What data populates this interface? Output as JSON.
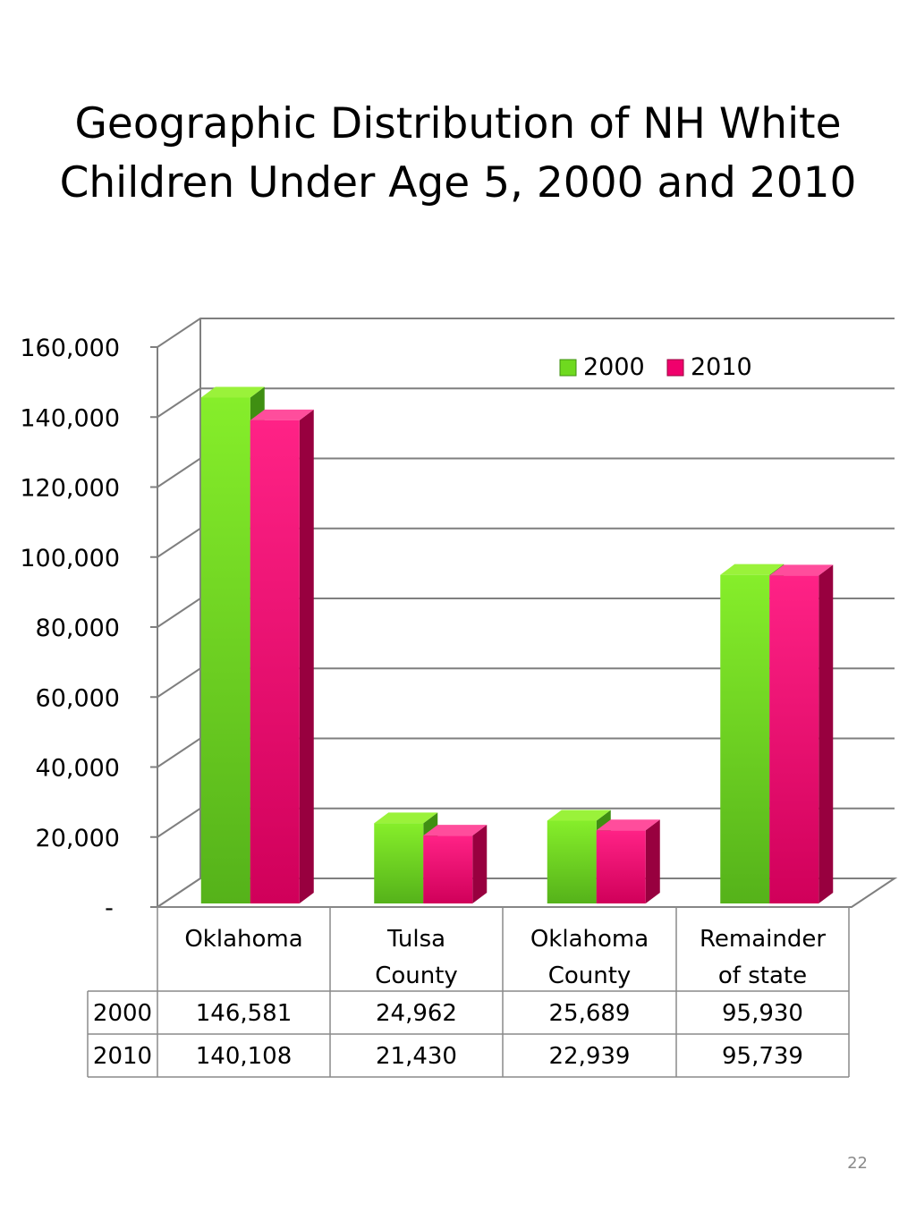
{
  "title": {
    "line1": "Geographic Distribution of NH White",
    "line2": "Children Under Age 5, 2000 and 2010"
  },
  "page_number": "22",
  "colors": {
    "series_2000": "#6fd91f",
    "series_2010": "#f0006c",
    "grid": "#7f7f7f"
  },
  "chart_data": {
    "type": "bar",
    "style": "3d-clustered-column-with-data-table",
    "title": "Geographic Distribution of NH White Children Under Age 5, 2000 and 2010",
    "categories": [
      [
        "Oklahoma"
      ],
      [
        "Tulsa",
        "County"
      ],
      [
        "Oklahoma",
        "County"
      ],
      [
        "Remainder",
        "of state"
      ]
    ],
    "series": [
      {
        "name": "2000",
        "values": [
          146581,
          24962,
          25689,
          95930
        ],
        "labels": [
          "146,581",
          "24,962",
          "25,689",
          "95,930"
        ]
      },
      {
        "name": "2010",
        "values": [
          140108,
          21430,
          22939,
          95739
        ],
        "labels": [
          "140,108",
          "21,430",
          "22,939",
          "95,739"
        ]
      }
    ],
    "ylim": [
      0,
      160000
    ],
    "y_ticks": [
      {
        "value": 0,
        "label": "-"
      },
      {
        "value": 20000,
        "label": "20,000"
      },
      {
        "value": 40000,
        "label": "40,000"
      },
      {
        "value": 60000,
        "label": "60,000"
      },
      {
        "value": 80000,
        "label": "80,000"
      },
      {
        "value": 100000,
        "label": "100,000"
      },
      {
        "value": 120000,
        "label": "120,000"
      },
      {
        "value": 140000,
        "label": "140,000"
      },
      {
        "value": 160000,
        "label": "160,000"
      }
    ],
    "grid": true,
    "legend": "top-right"
  }
}
